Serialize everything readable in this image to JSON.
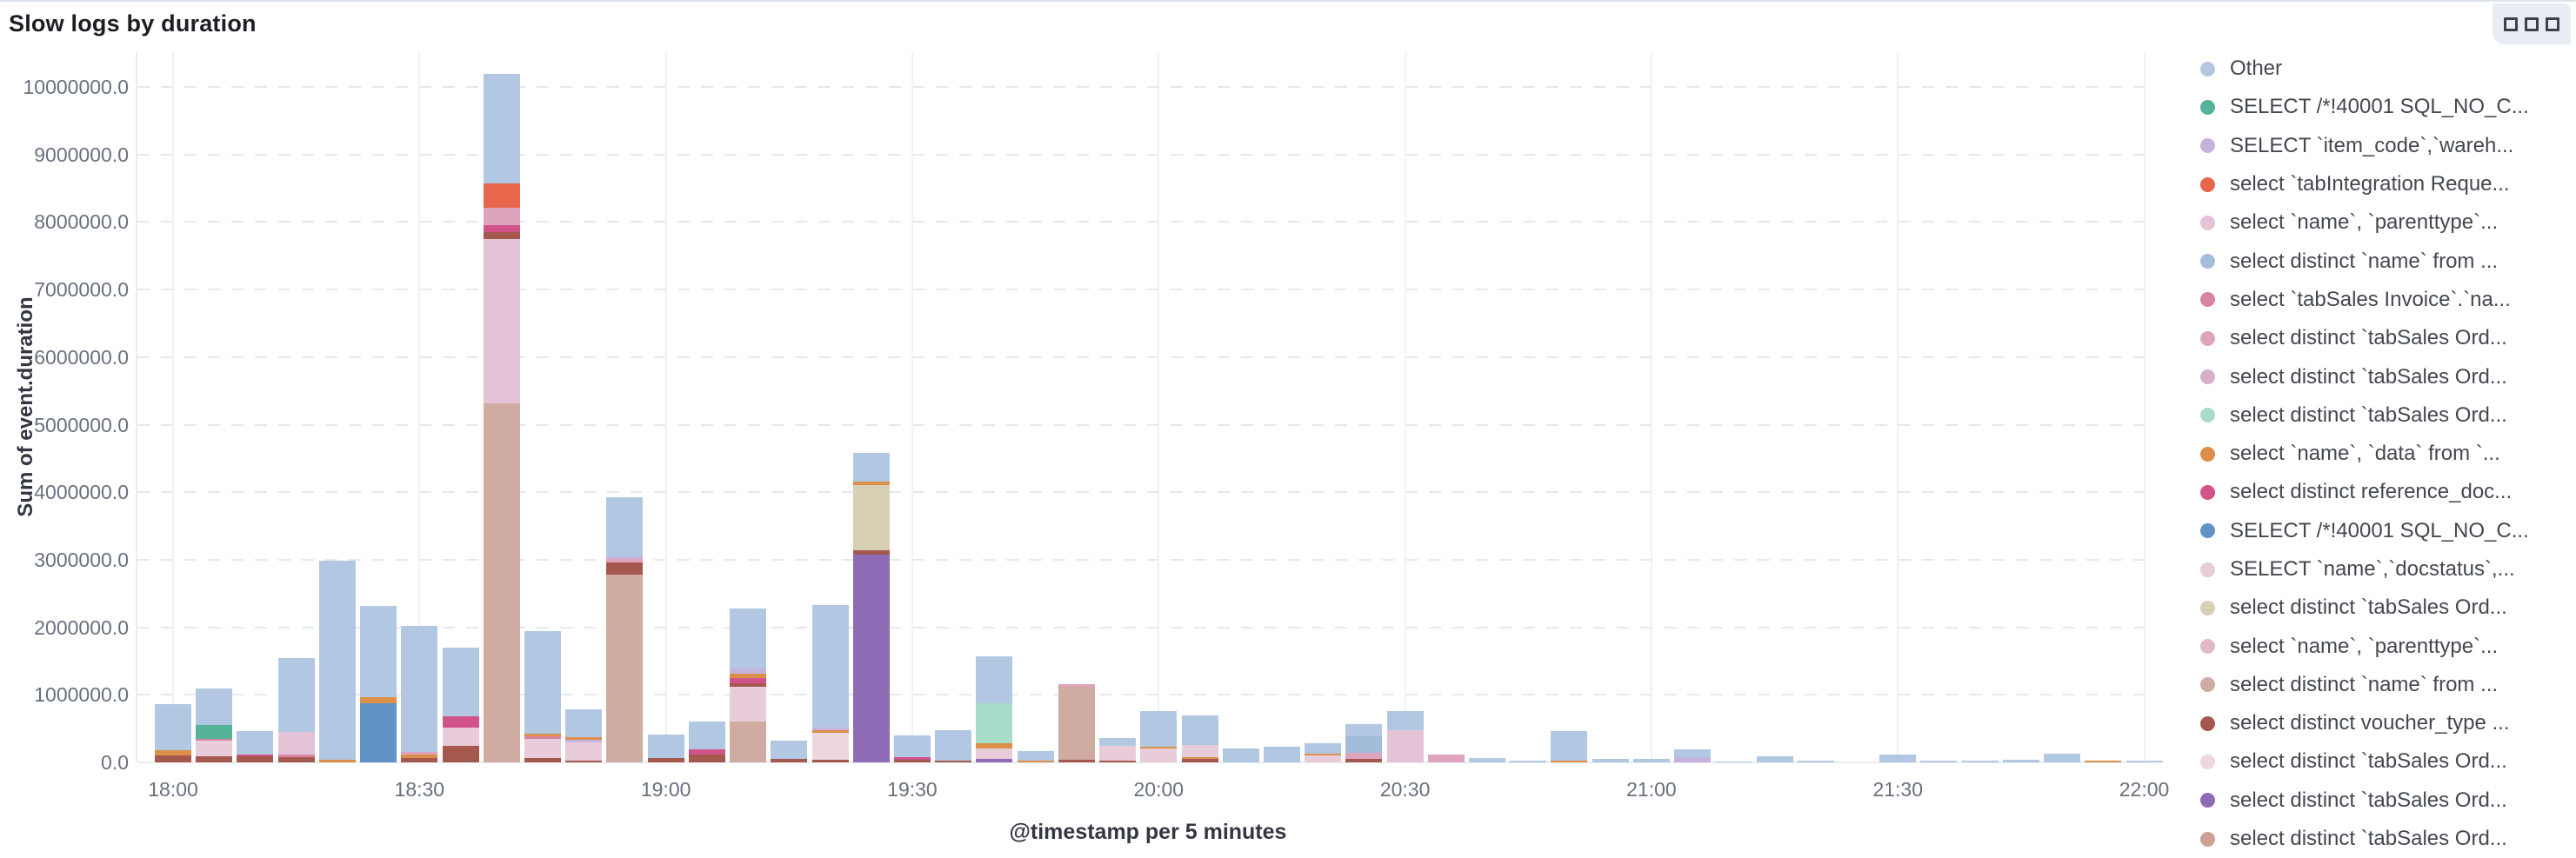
{
  "panel": {
    "title": "Slow logs by duration",
    "options_icon": "boxes-horizontal"
  },
  "chart_data": {
    "type": "bar",
    "stacked": true,
    "title": "Slow logs by duration",
    "xlabel": "@timestamp per 5 minutes",
    "ylabel": "Sum of event.duration",
    "ylim": [
      0,
      10200000
    ],
    "y_tick_step": 1000000,
    "grid": {
      "horizontal": "dashed",
      "vertical": "every 30 min"
    },
    "legend_position": "right",
    "y_tick_labels": [
      "0.0",
      "1000000.0",
      "2000000.0",
      "3000000.0",
      "4000000.0",
      "5000000.0",
      "6000000.0",
      "7000000.0",
      "8000000.0",
      "9000000.0",
      "10000000.0"
    ],
    "x_tick_labels": [
      "18:00",
      "18:30",
      "19:00",
      "19:30",
      "20:00",
      "20:30",
      "21:00",
      "21:30",
      "22:00"
    ],
    "palette": {
      "other": "#b2c8e2",
      "green": "#54b399",
      "lpurple": "#c5b3de",
      "redorange": "#e7664c",
      "pink_parent": "#e4c3d7",
      "blue_name": "#a2bcd9",
      "dkpink_si": "#d9849e",
      "pink_so1": "#dfa4bd",
      "pink_so2": "#d9afc8",
      "mint": "#a9dcc8",
      "orange": "#dc8f49",
      "magenta": "#d0548a",
      "blue40001": "#6092c5",
      "lpink_doc": "#e8ccd9",
      "beige": "#d8d0b5",
      "pink_parent2": "#e2b7cc",
      "rose_name2": "#d0aba1",
      "brick": "#a5584e",
      "vlpink": "#eed6e1",
      "purple": "#8d6cb5",
      "rose_so5": "#cfa095"
    },
    "legend": [
      {
        "key": "other",
        "label": "Other"
      },
      {
        "key": "green",
        "label": "SELECT /*!40001 SQL_NO_C..."
      },
      {
        "key": "lpurple",
        "label": "SELECT `item_code`,`wareh..."
      },
      {
        "key": "redorange",
        "label": "select `tabIntegration Reque..."
      },
      {
        "key": "pink_parent",
        "label": "select `name`, `parenttype`..."
      },
      {
        "key": "blue_name",
        "label": "select distinct `name` from ..."
      },
      {
        "key": "dkpink_si",
        "label": "select `tabSales Invoice`.`na..."
      },
      {
        "key": "pink_so1",
        "label": "select distinct `tabSales Ord..."
      },
      {
        "key": "pink_so2",
        "label": "select distinct `tabSales Ord..."
      },
      {
        "key": "mint",
        "label": "select distinct `tabSales Ord..."
      },
      {
        "key": "orange",
        "label": "select `name`, `data` from `..."
      },
      {
        "key": "magenta",
        "label": "select distinct reference_doc..."
      },
      {
        "key": "blue40001",
        "label": "SELECT /*!40001 SQL_NO_C..."
      },
      {
        "key": "lpink_doc",
        "label": "SELECT `name`,`docstatus`,..."
      },
      {
        "key": "beige",
        "label": "select distinct `tabSales Ord..."
      },
      {
        "key": "pink_parent2",
        "label": "select `name`, `parenttype`..."
      },
      {
        "key": "rose_name2",
        "label": "select distinct `name` from ..."
      },
      {
        "key": "brick",
        "label": "select distinct voucher_type ..."
      },
      {
        "key": "vlpink",
        "label": "select distinct `tabSales Ord..."
      },
      {
        "key": "purple",
        "label": "select distinct `tabSales Ord..."
      },
      {
        "key": "rose_so5",
        "label": "select distinct `tabSales Ord..."
      }
    ],
    "bars": [
      {
        "t": "18:00",
        "s": [
          [
            "brick",
            100000
          ],
          [
            "orange",
            80000
          ],
          [
            "other",
            680000
          ]
        ]
      },
      {
        "t": "18:05",
        "s": [
          [
            "brick",
            90000
          ],
          [
            "lpink_doc",
            230000
          ],
          [
            "dkpink_si",
            30000
          ],
          [
            "green",
            210000
          ],
          [
            "other",
            540000
          ]
        ]
      },
      {
        "t": "18:10",
        "s": [
          [
            "brick",
            90000
          ],
          [
            "magenta",
            30000
          ],
          [
            "other",
            340000
          ]
        ]
      },
      {
        "t": "18:15",
        "s": [
          [
            "brick",
            80000
          ],
          [
            "dkpink_si",
            40000
          ],
          [
            "pink_parent",
            330000
          ],
          [
            "other",
            1090000
          ]
        ]
      },
      {
        "t": "18:20",
        "s": [
          [
            "orange",
            40000
          ],
          [
            "other",
            2940000
          ]
        ]
      },
      {
        "t": "18:25",
        "s": [
          [
            "blue40001",
            870000
          ],
          [
            "orange",
            100000
          ],
          [
            "other",
            1350000
          ]
        ]
      },
      {
        "t": "18:30",
        "s": [
          [
            "brick",
            70000
          ],
          [
            "orange",
            40000
          ],
          [
            "pink_so1",
            40000
          ],
          [
            "other",
            1870000
          ]
        ]
      },
      {
        "t": "18:35",
        "s": [
          [
            "brick",
            240000
          ],
          [
            "lpink_doc",
            280000
          ],
          [
            "magenta",
            160000
          ],
          [
            "other",
            1020000
          ]
        ]
      },
      {
        "t": "18:40",
        "s": [
          [
            "rose_name2",
            5320000
          ],
          [
            "pink_parent",
            2430000
          ],
          [
            "brick",
            100000
          ],
          [
            "magenta",
            100000
          ],
          [
            "pink_so1",
            260000
          ],
          [
            "redorange",
            360000
          ],
          [
            "other",
            1630000
          ]
        ]
      },
      {
        "t": "18:45",
        "s": [
          [
            "brick",
            70000
          ],
          [
            "lpink_doc",
            280000
          ],
          [
            "dkpink_si",
            30000
          ],
          [
            "orange",
            50000
          ],
          [
            "other",
            1520000
          ]
        ]
      },
      {
        "t": "18:50",
        "s": [
          [
            "brick",
            30000
          ],
          [
            "lpink_doc",
            260000
          ],
          [
            "lpurple",
            40000
          ],
          [
            "orange",
            50000
          ],
          [
            "other",
            400000
          ]
        ]
      },
      {
        "t": "18:55",
        "s": [
          [
            "rose_name2",
            2780000
          ],
          [
            "brick",
            180000
          ],
          [
            "pink_so1",
            50000
          ],
          [
            "lpurple",
            40000
          ],
          [
            "other",
            870000
          ]
        ]
      },
      {
        "t": "19:00",
        "s": [
          [
            "brick",
            60000
          ],
          [
            "other",
            350000
          ]
        ]
      },
      {
        "t": "19:05",
        "s": [
          [
            "brick",
            120000
          ],
          [
            "magenta",
            70000
          ],
          [
            "other",
            420000
          ]
        ]
      },
      {
        "t": "19:10",
        "s": [
          [
            "rose_name2",
            600000
          ],
          [
            "lpink_doc",
            520000
          ],
          [
            "brick",
            50000
          ],
          [
            "magenta",
            80000
          ],
          [
            "orange",
            60000
          ],
          [
            "lpurple",
            80000
          ],
          [
            "other",
            890000
          ]
        ]
      },
      {
        "t": "19:15",
        "s": [
          [
            "brick",
            50000
          ],
          [
            "other",
            270000
          ]
        ]
      },
      {
        "t": "19:20",
        "s": [
          [
            "brick",
            40000
          ],
          [
            "vlpink",
            400000
          ],
          [
            "orange",
            40000
          ],
          [
            "lpurple",
            40000
          ],
          [
            "other",
            1810000
          ]
        ]
      },
      {
        "t": "19:25",
        "s": [
          [
            "purple",
            3080000
          ],
          [
            "brick",
            60000
          ],
          [
            "beige",
            970000
          ],
          [
            "orange",
            50000
          ],
          [
            "other",
            420000
          ]
        ]
      },
      {
        "t": "19:30",
        "s": [
          [
            "brick",
            40000
          ],
          [
            "magenta",
            40000
          ],
          [
            "other",
            320000
          ]
        ]
      },
      {
        "t": "19:35",
        "s": [
          [
            "brick",
            20000
          ],
          [
            "other",
            450000
          ]
        ]
      },
      {
        "t": "19:40",
        "s": [
          [
            "purple",
            50000
          ],
          [
            "lpink_doc",
            150000
          ],
          [
            "orange",
            80000
          ],
          [
            "mint",
            600000
          ],
          [
            "other",
            690000
          ]
        ]
      },
      {
        "t": "19:45",
        "s": [
          [
            "orange",
            30000
          ],
          [
            "other",
            140000
          ]
        ]
      },
      {
        "t": "19:50",
        "s": [
          [
            "brick",
            40000
          ],
          [
            "rose_name2",
            1080000
          ],
          [
            "pink_so1",
            40000
          ]
        ]
      },
      {
        "t": "19:55",
        "s": [
          [
            "brick",
            20000
          ],
          [
            "lpink_doc",
            230000
          ],
          [
            "other",
            110000
          ]
        ]
      },
      {
        "t": "20:00",
        "s": [
          [
            "lpink_doc",
            200000
          ],
          [
            "orange",
            30000
          ],
          [
            "other",
            530000
          ]
        ]
      },
      {
        "t": "20:05",
        "s": [
          [
            "brick",
            50000
          ],
          [
            "orange",
            30000
          ],
          [
            "lpink_doc",
            180000
          ],
          [
            "other",
            430000
          ]
        ]
      },
      {
        "t": "20:10",
        "s": [
          [
            "other",
            200000
          ]
        ]
      },
      {
        "t": "20:15",
        "s": [
          [
            "other",
            230000
          ]
        ]
      },
      {
        "t": "20:20",
        "s": [
          [
            "lpink_doc",
            100000
          ],
          [
            "orange",
            30000
          ],
          [
            "other",
            150000
          ]
        ]
      },
      {
        "t": "20:25",
        "s": [
          [
            "brick",
            50000
          ],
          [
            "pink_so1",
            90000
          ],
          [
            "blue_name",
            250000
          ],
          [
            "other",
            180000
          ]
        ]
      },
      {
        "t": "20:30",
        "s": [
          [
            "pink_parent",
            470000
          ],
          [
            "other",
            290000
          ]
        ]
      },
      {
        "t": "20:35",
        "s": [
          [
            "pink_so1",
            120000
          ]
        ]
      },
      {
        "t": "20:40",
        "s": [
          [
            "other",
            70000
          ]
        ]
      },
      {
        "t": "20:45",
        "s": [
          [
            "other",
            20000
          ]
        ]
      },
      {
        "t": "20:50",
        "s": [
          [
            "orange",
            30000
          ],
          [
            "other",
            430000
          ]
        ]
      },
      {
        "t": "20:55",
        "s": [
          [
            "other",
            50000
          ]
        ]
      },
      {
        "t": "21:00",
        "s": [
          [
            "other",
            50000
          ]
        ]
      },
      {
        "t": "21:05",
        "s": [
          [
            "lpurple",
            80000
          ],
          [
            "other",
            110000
          ]
        ]
      },
      {
        "t": "21:10",
        "s": [
          [
            "other",
            10000
          ]
        ]
      },
      {
        "t": "21:15",
        "s": [
          [
            "other",
            90000
          ]
        ]
      },
      {
        "t": "21:20",
        "s": [
          [
            "other",
            20000
          ]
        ]
      },
      {
        "t": "21:25",
        "s": []
      },
      {
        "t": "21:30",
        "s": [
          [
            "other",
            120000
          ]
        ]
      },
      {
        "t": "21:35",
        "s": [
          [
            "other",
            30000
          ]
        ]
      },
      {
        "t": "21:40",
        "s": [
          [
            "other",
            20000
          ]
        ]
      },
      {
        "t": "21:45",
        "s": [
          [
            "other",
            35000
          ]
        ]
      },
      {
        "t": "21:50",
        "s": [
          [
            "other",
            130000
          ]
        ]
      },
      {
        "t": "21:55",
        "s": [
          [
            "orange",
            20000
          ]
        ]
      },
      {
        "t": "22:00",
        "s": [
          [
            "other",
            30000
          ]
        ]
      }
    ]
  }
}
